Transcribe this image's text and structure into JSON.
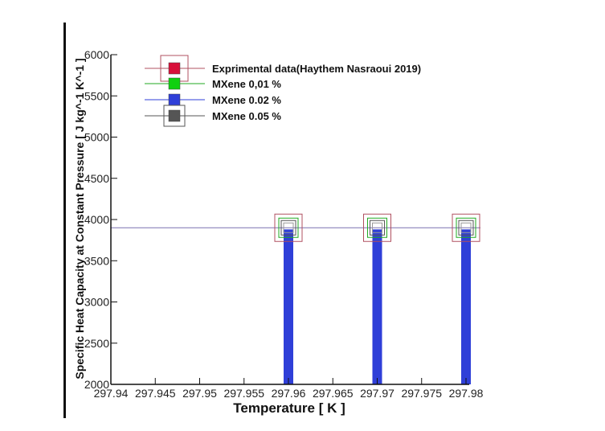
{
  "chart_data": {
    "type": "bar",
    "xlabel": "Temperature [ K ]",
    "ylabel": "Specific Heat Capacity at Constant Pressure [ J kg^-1 K^-1 ]",
    "xlim": [
      297.94,
      297.98
    ],
    "ylim": [
      2000,
      6000
    ],
    "x_ticks": [
      "297.94",
      "297.945",
      "297.95",
      "297.955",
      "297.96",
      "297.965",
      "297.97",
      "297.975",
      "297.98"
    ],
    "y_ticks": [
      "2000",
      "2500",
      "3000",
      "3500",
      "4000",
      "4500",
      "5000",
      "5500",
      "6000"
    ],
    "x_tick_values": [
      297.94,
      297.945,
      297.95,
      297.955,
      297.96,
      297.965,
      297.97,
      297.975,
      297.98
    ],
    "y_tick_values": [
      2000,
      2500,
      3000,
      3500,
      4000,
      4500,
      5000,
      5500,
      6000
    ],
    "x": [
      297.96,
      297.97,
      297.98
    ],
    "series": [
      {
        "name": "Exprimental data(Haythem Nasraoui 2019)",
        "values": [
          3900,
          3900,
          3900
        ],
        "color": "#b05060",
        "marker": "#d8103a",
        "style": "line-marker"
      },
      {
        "name": "MXene 0,01 %",
        "values": [
          3900,
          3900,
          3900
        ],
        "color": "#22aa22",
        "marker": "#10d010",
        "style": "line-marker"
      },
      {
        "name": "MXene 0.02 %",
        "values": [
          3880,
          3880,
          3880
        ],
        "color": "#2f3fd8",
        "marker": "#2f3fd8",
        "style": "bar"
      },
      {
        "name": "MXene 0.05 %",
        "values": [
          3900,
          3900,
          3900
        ],
        "color": "#555555",
        "marker": "#555555",
        "style": "line-marker"
      }
    ],
    "reference_line": {
      "y": 3900,
      "color": "#7a70b0"
    },
    "legend_position": "top-left"
  }
}
